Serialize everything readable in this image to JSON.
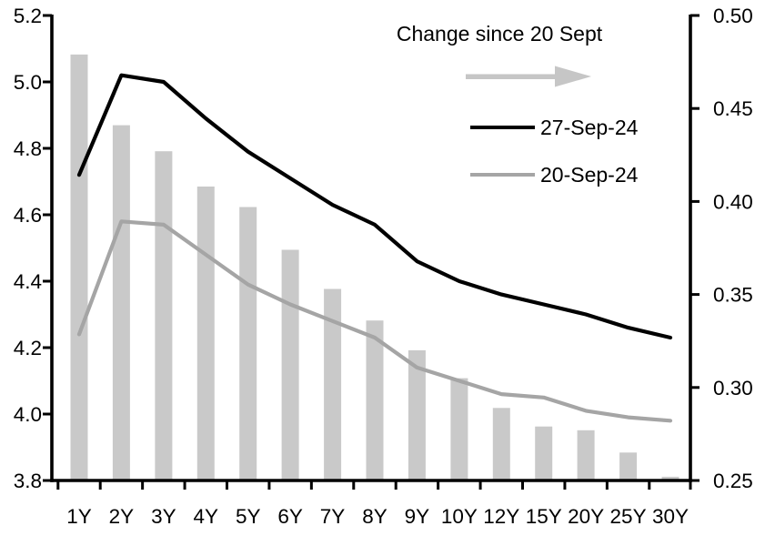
{
  "chart_data": {
    "type": "combo",
    "categories": [
      "1Y",
      "2Y",
      "3Y",
      "4Y",
      "5Y",
      "6Y",
      "7Y",
      "8Y",
      "9Y",
      "10Y",
      "12Y",
      "15Y",
      "20Y",
      "25Y",
      "30Y"
    ],
    "series": [
      {
        "name": "Change since 20 Sept",
        "type": "bar",
        "axis": "right",
        "color": "#c9c9c9",
        "values": [
          0.479,
          0.441,
          0.427,
          0.408,
          0.397,
          0.374,
          0.353,
          0.336,
          0.32,
          0.305,
          0.289,
          0.279,
          0.277,
          0.265,
          0.252
        ]
      },
      {
        "name": "27-Sep-24",
        "type": "line",
        "axis": "left",
        "color": "#000000",
        "values": [
          4.72,
          5.02,
          5.0,
          4.89,
          4.79,
          4.71,
          4.63,
          4.57,
          4.46,
          4.4,
          4.36,
          4.33,
          4.3,
          4.26,
          4.23
        ]
      },
      {
        "name": "20-Sep-24",
        "type": "line",
        "axis": "left",
        "color": "#a5a5a5",
        "values": [
          4.24,
          4.58,
          4.57,
          4.48,
          4.39,
          4.33,
          4.28,
          4.23,
          4.14,
          4.1,
          4.06,
          4.05,
          4.01,
          3.99,
          3.98
        ]
      }
    ],
    "left_axis": {
      "min": 3.8,
      "max": 5.2,
      "tick_labels": [
        "5.2",
        "5.0",
        "4.8",
        "4.6",
        "4.4",
        "4.2",
        "4.0",
        "3.8"
      ]
    },
    "right_axis": {
      "min": 0.25,
      "max": 0.5,
      "tick_labels": [
        "0.50",
        "0.45",
        "0.40",
        "0.35",
        "0.30",
        "0.25"
      ]
    },
    "legend": {
      "title": "Change since 20 Sept",
      "arrow_icon": "right-arrow",
      "arrow_color": "#c6c6c6",
      "position": "top-right",
      "entries": [
        {
          "label": "27-Sep-24",
          "color": "#000000"
        },
        {
          "label": "20-Sep-24",
          "color": "#a5a5a5"
        }
      ]
    },
    "grid": false,
    "background": "#ffffff"
  }
}
